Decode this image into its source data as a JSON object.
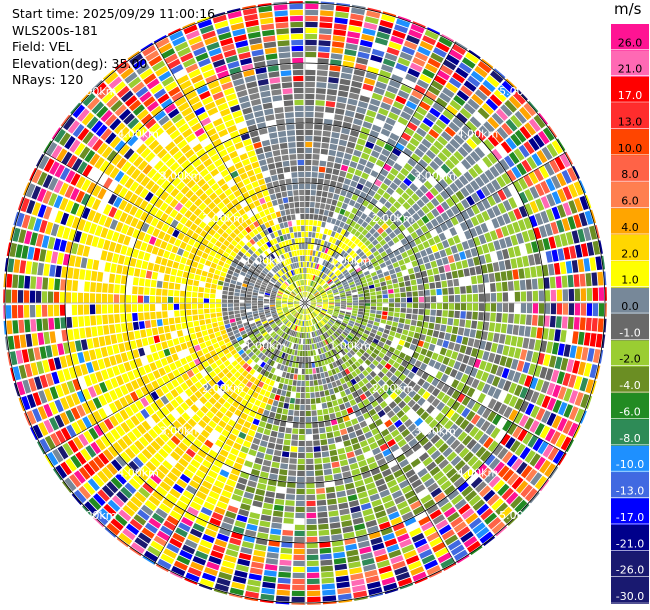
{
  "info": {
    "start_time": "Start time: 2025/09/29 11:00:16",
    "instrument": "WLS200s-181",
    "field": "Field: VEL",
    "elevation": "Elevation(deg): 35.00",
    "nrays": "NRays: 120"
  },
  "rings": {
    "labels": [
      "1.00km",
      "2.00km",
      "3.00km",
      "4.00km",
      "5.00km"
    ],
    "ranges_km": [
      1,
      2,
      3,
      4,
      5
    ]
  },
  "colorbar": {
    "unit": "m/s",
    "ticks": [
      "26.0",
      "21.0",
      "17.0",
      "13.0",
      "10.0",
      "8.0",
      "6.0",
      "4.0",
      "2.0",
      "1.0",
      "0.0",
      "-1.0",
      "-2.0",
      "-4.0",
      "-6.0",
      "-8.0",
      "-10.0",
      "-13.0",
      "-17.0",
      "-21.0",
      "-26.0",
      "-30.0"
    ],
    "colors": [
      "#ff1493",
      "#ff69b4",
      "#ff0000",
      "#ff2d2d",
      "#ff4500",
      "#ff6347",
      "#ff7f50",
      "#ffa500",
      "#ffd700",
      "#ffff00",
      "#778899",
      "#696969",
      "#9acd32",
      "#6b8e23",
      "#228b22",
      "#2e8b57",
      "#1e90ff",
      "#4169e1",
      "#0000ff",
      "#00008b",
      "#191970",
      "#191970"
    ]
  }
}
